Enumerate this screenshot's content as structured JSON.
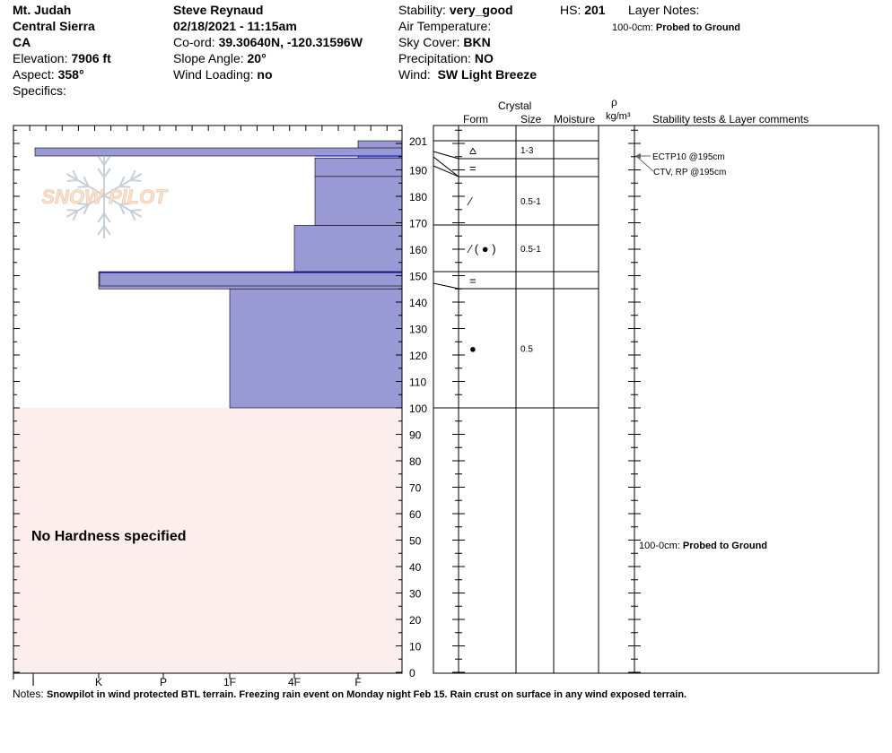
{
  "site": {
    "name": "Mt. Judah",
    "range": "Central Sierra",
    "state": "CA",
    "elevation_label": "Elevation:",
    "elevation": "7906 ft",
    "aspect_label": "Aspect:",
    "aspect": "358°",
    "specifics_label": "Specifics:"
  },
  "observer": {
    "name": "Steve Reynaud",
    "datetime": "02/18/2021 - 11:15am",
    "coord_label": "Co-ord:",
    "coord": "39.30640N, -120.31596W",
    "slope_label": "Slope Angle:",
    "slope": "20°",
    "wind_loading_label": "Wind Loading:",
    "wind_loading": "no"
  },
  "conditions": {
    "stability_label": "Stability:",
    "stability": "very_good",
    "hs_label": "HS:",
    "hs": "201",
    "air_temp_label": "Air Temperature:",
    "sky_label": "Sky Cover:",
    "sky": "BKN",
    "precip_label": "Precipitation:",
    "precip": "NO",
    "wind_label": "Wind:",
    "wind": "SW Light Breeze"
  },
  "layer_notes": {
    "label": "Layer Notes:",
    "range": "100-0cm:",
    "note": "Probed to Ground"
  },
  "columns": {
    "crystal": "Crystal",
    "form": "Form",
    "size": "Size",
    "moisture": "Moisture",
    "rho": "ρ",
    "density": "kg/m³",
    "stability": "Stability tests & Layer comments"
  },
  "hardness_axis": [
    "I",
    "K",
    "P",
    "1F",
    "4F",
    "F"
  ],
  "depth_ticks": [
    "201",
    "190",
    "180",
    "170",
    "160",
    "150",
    "140",
    "130",
    "120",
    "110",
    "100",
    "90",
    "80",
    "70",
    "60",
    "50",
    "40",
    "30",
    "20",
    "10",
    "0"
  ],
  "no_hardness": "No Hardness specified",
  "logo": "SNOW PILOT",
  "layers": [
    {
      "top": 201,
      "bottom": 194.5,
      "form": "⩟",
      "size": "1-3",
      "hardness": "F"
    },
    {
      "top": 194.5,
      "bottom": 187.5,
      "form": "=",
      "size": "",
      "hardness": "4F-F"
    },
    {
      "top": 187.5,
      "bottom": 169,
      "form": "⁄",
      "size": "0.5-1",
      "hardness": "4F-F"
    },
    {
      "top": 169,
      "bottom": 151.5,
      "form": "⁄ ( ● )",
      "size": "0.5-1",
      "hardness": "4F"
    },
    {
      "top": 151.5,
      "bottom": 145,
      "form": "=",
      "size": "",
      "hardness": "K"
    },
    {
      "top": 145,
      "bottom": 100,
      "form": "●",
      "size": "0.5",
      "hardness": "1F"
    }
  ],
  "tests": [
    {
      "text": "ECTP10 @195cm"
    },
    {
      "text": "CTV, RP @195cm"
    }
  ],
  "comment_note": {
    "range": "100-0cm:",
    "note": "Probed to Ground"
  },
  "notes": {
    "label": "Notes:",
    "text": "Snowpilot in wind protected BTL terrain.  Freezing rain event on Monday night Feb 15.  Rain crust on surface in any wind exposed terrain."
  },
  "colors": {
    "hardness_fill": "#9999d6",
    "no_hardness_bg": "#fdeeee"
  }
}
